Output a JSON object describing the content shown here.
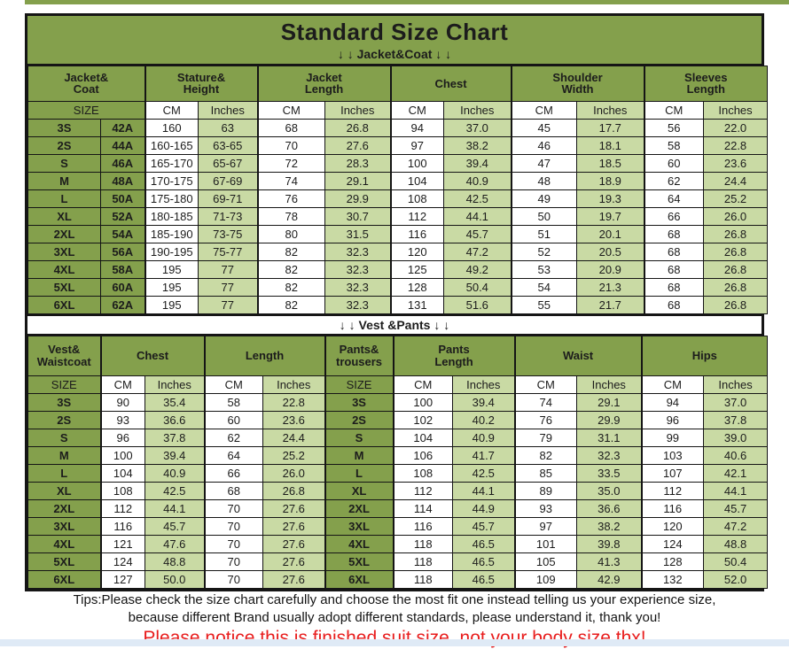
{
  "page": {
    "title": "Standard Size Chart",
    "jacket_band": "↓ ↓  Jacket&Coat ↓ ↓",
    "vest_band": "↓ ↓  Vest &Pants ↓ ↓",
    "tips_line1": "Tips:Please check the size chart carefully and choose the most fit one instead telling us your experience size,",
    "tips_line2": "because different Brand usually adopt different standards, please understand it, thank you!",
    "notice": "Please notice this is finished suit size, not your body size,thx!"
  },
  "colors": {
    "dark_green": "#84a04c",
    "light_green": "#c9daa4",
    "border_black": "#151515",
    "notice_red": "#e81d1d",
    "bottom_strip_blue": "#dfeaf6"
  },
  "jacket_table": {
    "groups": [
      {
        "label": "Jacket&\nCoat",
        "span": 2
      },
      {
        "label": "Stature&\nHeight",
        "span": 2
      },
      {
        "label": "Jacket\nLength",
        "span": 2
      },
      {
        "label": "Chest",
        "span": 2
      },
      {
        "label": "Shoulder\nWidth",
        "span": 2
      },
      {
        "label": "Sleeves\nLength",
        "span": 2
      }
    ],
    "unit_row": [
      "SIZE",
      "CM",
      "Inches",
      "CM",
      "Inches",
      "CM",
      "Inches",
      "CM",
      "Inches",
      "CM",
      "Inches"
    ],
    "rows": [
      [
        "3S",
        "42A",
        "160",
        "63",
        "68",
        "26.8",
        "94",
        "37.0",
        "45",
        "17.7",
        "56",
        "22.0"
      ],
      [
        "2S",
        "44A",
        "160-165",
        "63-65",
        "70",
        "27.6",
        "97",
        "38.2",
        "46",
        "18.1",
        "58",
        "22.8"
      ],
      [
        "S",
        "46A",
        "165-170",
        "65-67",
        "72",
        "28.3",
        "100",
        "39.4",
        "47",
        "18.5",
        "60",
        "23.6"
      ],
      [
        "M",
        "48A",
        "170-175",
        "67-69",
        "74",
        "29.1",
        "104",
        "40.9",
        "48",
        "18.9",
        "62",
        "24.4"
      ],
      [
        "L",
        "50A",
        "175-180",
        "69-71",
        "76",
        "29.9",
        "108",
        "42.5",
        "49",
        "19.3",
        "64",
        "25.2"
      ],
      [
        "XL",
        "52A",
        "180-185",
        "71-73",
        "78",
        "30.7",
        "112",
        "44.1",
        "50",
        "19.7",
        "66",
        "26.0"
      ],
      [
        "2XL",
        "54A",
        "185-190",
        "73-75",
        "80",
        "31.5",
        "116",
        "45.7",
        "51",
        "20.1",
        "68",
        "26.8"
      ],
      [
        "3XL",
        "56A",
        "190-195",
        "75-77",
        "82",
        "32.3",
        "120",
        "47.2",
        "52",
        "20.5",
        "68",
        "26.8"
      ],
      [
        "4XL",
        "58A",
        "195",
        "77",
        "82",
        "32.3",
        "125",
        "49.2",
        "53",
        "20.9",
        "68",
        "26.8"
      ],
      [
        "5XL",
        "60A",
        "195",
        "77",
        "82",
        "32.3",
        "128",
        "50.4",
        "54",
        "21.3",
        "68",
        "26.8"
      ],
      [
        "6XL",
        "62A",
        "195",
        "77",
        "82",
        "32.3",
        "131",
        "51.6",
        "55",
        "21.7",
        "68",
        "26.8"
      ]
    ]
  },
  "vest_table": {
    "groups": [
      {
        "label": "Vest&\nWaistcoat",
        "span": 1
      },
      {
        "label": "Chest",
        "span": 2
      },
      {
        "label": "Length",
        "span": 2
      },
      {
        "label": "Pants&\ntrousers",
        "span": 1
      },
      {
        "label": "Pants\nLength",
        "span": 2
      },
      {
        "label": "Waist",
        "span": 2
      },
      {
        "label": "Hips",
        "span": 2
      }
    ],
    "unit_row": [
      "SIZE",
      "CM",
      "Inches",
      "CM",
      "Inches",
      "SIZE",
      "CM",
      "Inches",
      "CM",
      "Inches",
      "CM",
      "Inches"
    ],
    "rows": [
      [
        "3S",
        "90",
        "35.4",
        "58",
        "22.8",
        "3S",
        "100",
        "39.4",
        "74",
        "29.1",
        "94",
        "37.0"
      ],
      [
        "2S",
        "93",
        "36.6",
        "60",
        "23.6",
        "2S",
        "102",
        "40.2",
        "76",
        "29.9",
        "96",
        "37.8"
      ],
      [
        "S",
        "96",
        "37.8",
        "62",
        "24.4",
        "S",
        "104",
        "40.9",
        "79",
        "31.1",
        "99",
        "39.0"
      ],
      [
        "M",
        "100",
        "39.4",
        "64",
        "25.2",
        "M",
        "106",
        "41.7",
        "82",
        "32.3",
        "103",
        "40.6"
      ],
      [
        "L",
        "104",
        "40.9",
        "66",
        "26.0",
        "L",
        "108",
        "42.5",
        "85",
        "33.5",
        "107",
        "42.1"
      ],
      [
        "XL",
        "108",
        "42.5",
        "68",
        "26.8",
        "XL",
        "112",
        "44.1",
        "89",
        "35.0",
        "112",
        "44.1"
      ],
      [
        "2XL",
        "112",
        "44.1",
        "70",
        "27.6",
        "2XL",
        "114",
        "44.9",
        "93",
        "36.6",
        "116",
        "45.7"
      ],
      [
        "3XL",
        "116",
        "45.7",
        "70",
        "27.6",
        "3XL",
        "116",
        "45.7",
        "97",
        "38.2",
        "120",
        "47.2"
      ],
      [
        "4XL",
        "121",
        "47.6",
        "70",
        "27.6",
        "4XL",
        "118",
        "46.5",
        "101",
        "39.8",
        "124",
        "48.8"
      ],
      [
        "5XL",
        "124",
        "48.8",
        "70",
        "27.6",
        "5XL",
        "118",
        "46.5",
        "105",
        "41.3",
        "128",
        "50.4"
      ],
      [
        "6XL",
        "127",
        "50.0",
        "70",
        "27.6",
        "6XL",
        "118",
        "46.5",
        "109",
        "42.9",
        "132",
        "52.0"
      ]
    ]
  }
}
